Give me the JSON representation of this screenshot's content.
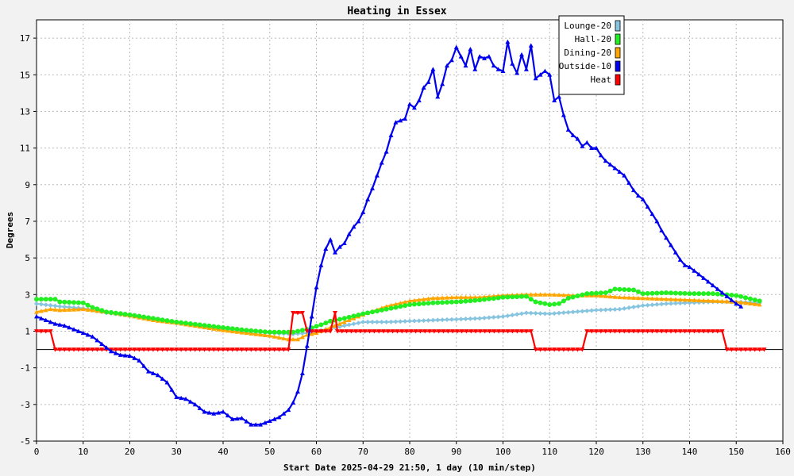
{
  "chart_data": {
    "type": "line",
    "title": "Heating in Essex",
    "xlabel": "Start Date 2025-04-29 21:50, 1 day (10 min/step)",
    "ylabel": "Degrees",
    "xlim": [
      0,
      160
    ],
    "ylim": [
      -5,
      18
    ],
    "x_ticks": [
      0,
      10,
      20,
      30,
      40,
      50,
      60,
      70,
      80,
      90,
      100,
      110,
      120,
      130,
      140,
      150,
      160
    ],
    "y_ticks": [
      -5,
      -3,
      -1,
      1,
      3,
      5,
      7,
      9,
      11,
      13,
      15,
      17
    ],
    "grid": true,
    "legend_position": "top-right",
    "background": "#f2f2f2",
    "series": [
      {
        "name": "Lounge-20",
        "color": "#87c4e0",
        "marker": "diamond",
        "points": [
          [
            0,
            2.5
          ],
          [
            5,
            2.35
          ],
          [
            10,
            2.25
          ],
          [
            15,
            2.0
          ],
          [
            20,
            1.85
          ],
          [
            25,
            1.65
          ],
          [
            30,
            1.45
          ],
          [
            35,
            1.3
          ],
          [
            40,
            1.15
          ],
          [
            45,
            1.0
          ],
          [
            50,
            0.9
          ],
          [
            55,
            0.85
          ],
          [
            58,
            0.9
          ],
          [
            61,
            1.05
          ],
          [
            64,
            1.2
          ],
          [
            67,
            1.35
          ],
          [
            70,
            1.5
          ],
          [
            75,
            1.5
          ],
          [
            80,
            1.55
          ],
          [
            85,
            1.6
          ],
          [
            90,
            1.65
          ],
          [
            95,
            1.7
          ],
          [
            100,
            1.8
          ],
          [
            105,
            2.0
          ],
          [
            110,
            1.95
          ],
          [
            115,
            2.05
          ],
          [
            120,
            2.15
          ],
          [
            125,
            2.2
          ],
          [
            130,
            2.4
          ],
          [
            135,
            2.5
          ],
          [
            140,
            2.55
          ],
          [
            145,
            2.6
          ],
          [
            150,
            2.6
          ],
          [
            155,
            2.55
          ]
        ]
      },
      {
        "name": "Hall-20",
        "color": "#22ee22",
        "marker": "circle",
        "points": [
          [
            0,
            2.75
          ],
          [
            4,
            2.75
          ],
          [
            5,
            2.6
          ],
          [
            10,
            2.55
          ],
          [
            12,
            2.3
          ],
          [
            15,
            2.05
          ],
          [
            20,
            1.9
          ],
          [
            25,
            1.7
          ],
          [
            30,
            1.5
          ],
          [
            35,
            1.35
          ],
          [
            40,
            1.2
          ],
          [
            45,
            1.05
          ],
          [
            50,
            0.95
          ],
          [
            55,
            0.95
          ],
          [
            58,
            1.1
          ],
          [
            61,
            1.35
          ],
          [
            63,
            1.55
          ],
          [
            66,
            1.7
          ],
          [
            70,
            1.95
          ],
          [
            75,
            2.2
          ],
          [
            80,
            2.45
          ],
          [
            85,
            2.55
          ],
          [
            90,
            2.6
          ],
          [
            95,
            2.7
          ],
          [
            100,
            2.85
          ],
          [
            105,
            2.9
          ],
          [
            107,
            2.6
          ],
          [
            110,
            2.45
          ],
          [
            112,
            2.5
          ],
          [
            114,
            2.8
          ],
          [
            118,
            3.05
          ],
          [
            122,
            3.1
          ],
          [
            124,
            3.3
          ],
          [
            128,
            3.25
          ],
          [
            130,
            3.05
          ],
          [
            135,
            3.1
          ],
          [
            140,
            3.05
          ],
          [
            145,
            3.05
          ],
          [
            150,
            2.95
          ],
          [
            155,
            2.65
          ]
        ]
      },
      {
        "name": "Dining-20",
        "color": "#ffa500",
        "marker": "triangle",
        "points": [
          [
            0,
            2.05
          ],
          [
            3,
            2.2
          ],
          [
            5,
            2.15
          ],
          [
            10,
            2.2
          ],
          [
            15,
            2.05
          ],
          [
            20,
            1.85
          ],
          [
            25,
            1.6
          ],
          [
            30,
            1.45
          ],
          [
            35,
            1.25
          ],
          [
            40,
            1.05
          ],
          [
            45,
            0.9
          ],
          [
            50,
            0.75
          ],
          [
            54,
            0.55
          ],
          [
            56,
            0.55
          ],
          [
            58,
            0.8
          ],
          [
            60,
            0.9
          ],
          [
            63,
            1.2
          ],
          [
            66,
            1.5
          ],
          [
            70,
            1.9
          ],
          [
            75,
            2.35
          ],
          [
            80,
            2.65
          ],
          [
            85,
            2.8
          ],
          [
            90,
            2.85
          ],
          [
            95,
            2.85
          ],
          [
            100,
            2.95
          ],
          [
            105,
            3.0
          ],
          [
            110,
            3.0
          ],
          [
            115,
            2.95
          ],
          [
            120,
            2.95
          ],
          [
            125,
            2.85
          ],
          [
            130,
            2.8
          ],
          [
            135,
            2.75
          ],
          [
            140,
            2.7
          ],
          [
            145,
            2.65
          ],
          [
            150,
            2.6
          ],
          [
            155,
            2.45
          ]
        ]
      },
      {
        "name": "Outside-10",
        "color": "#0000ee",
        "marker": "triangle",
        "points": [
          [
            0,
            1.8
          ],
          [
            2,
            1.6
          ],
          [
            4,
            1.4
          ],
          [
            6,
            1.3
          ],
          [
            8,
            1.1
          ],
          [
            10,
            0.9
          ],
          [
            12,
            0.7
          ],
          [
            14,
            0.3
          ],
          [
            16,
            -0.1
          ],
          [
            18,
            -0.3
          ],
          [
            20,
            -0.35
          ],
          [
            22,
            -0.6
          ],
          [
            24,
            -1.2
          ],
          [
            26,
            -1.4
          ],
          [
            28,
            -1.8
          ],
          [
            30,
            -2.6
          ],
          [
            32,
            -2.7
          ],
          [
            34,
            -3.0
          ],
          [
            36,
            -3.4
          ],
          [
            38,
            -3.5
          ],
          [
            40,
            -3.4
          ],
          [
            42,
            -3.8
          ],
          [
            44,
            -3.75
          ],
          [
            46,
            -4.1
          ],
          [
            48,
            -4.1
          ],
          [
            50,
            -3.9
          ],
          [
            52,
            -3.7
          ],
          [
            54,
            -3.3
          ],
          [
            55,
            -2.9
          ],
          [
            56,
            -2.3
          ],
          [
            57,
            -1.3
          ],
          [
            58,
            0.2
          ],
          [
            59,
            1.8
          ],
          [
            60,
            3.4
          ],
          [
            61,
            4.6
          ],
          [
            62,
            5.5
          ],
          [
            63,
            6.0
          ],
          [
            64,
            5.3
          ],
          [
            65,
            5.6
          ],
          [
            66,
            5.8
          ],
          [
            67,
            6.3
          ],
          [
            68,
            6.7
          ],
          [
            69,
            7.0
          ],
          [
            70,
            7.5
          ],
          [
            71,
            8.2
          ],
          [
            72,
            8.8
          ],
          [
            73,
            9.5
          ],
          [
            74,
            10.2
          ],
          [
            75,
            10.8
          ],
          [
            76,
            11.7
          ],
          [
            77,
            12.4
          ],
          [
            78,
            12.5
          ],
          [
            79,
            12.6
          ],
          [
            80,
            13.4
          ],
          [
            81,
            13.2
          ],
          [
            82,
            13.6
          ],
          [
            83,
            14.3
          ],
          [
            84,
            14.6
          ],
          [
            85,
            15.3
          ],
          [
            86,
            13.8
          ],
          [
            87,
            14.5
          ],
          [
            88,
            15.5
          ],
          [
            89,
            15.8
          ],
          [
            90,
            16.5
          ],
          [
            91,
            16.0
          ],
          [
            92,
            15.5
          ],
          [
            93,
            16.4
          ],
          [
            94,
            15.3
          ],
          [
            95,
            16.0
          ],
          [
            96,
            15.9
          ],
          [
            97,
            16.0
          ],
          [
            98,
            15.5
          ],
          [
            99,
            15.3
          ],
          [
            100,
            15.2
          ],
          [
            101,
            16.8
          ],
          [
            102,
            15.6
          ],
          [
            103,
            15.1
          ],
          [
            104,
            16.1
          ],
          [
            105,
            15.3
          ],
          [
            106,
            16.6
          ],
          [
            107,
            14.8
          ],
          [
            108,
            15.0
          ],
          [
            109,
            15.2
          ],
          [
            110,
            15.0
          ],
          [
            111,
            13.6
          ],
          [
            112,
            13.8
          ],
          [
            113,
            12.8
          ],
          [
            114,
            12.0
          ],
          [
            115,
            11.7
          ],
          [
            116,
            11.5
          ],
          [
            117,
            11.1
          ],
          [
            118,
            11.3
          ],
          [
            119,
            11.0
          ],
          [
            120,
            11.0
          ],
          [
            121,
            10.6
          ],
          [
            122,
            10.3
          ],
          [
            123,
            10.1
          ],
          [
            124,
            9.9
          ],
          [
            125,
            9.7
          ],
          [
            126,
            9.5
          ],
          [
            127,
            9.1
          ],
          [
            128,
            8.7
          ],
          [
            129,
            8.4
          ],
          [
            130,
            8.2
          ],
          [
            131,
            7.8
          ],
          [
            132,
            7.4
          ],
          [
            133,
            7.0
          ],
          [
            134,
            6.5
          ],
          [
            135,
            6.1
          ],
          [
            136,
            5.7
          ],
          [
            137,
            5.3
          ],
          [
            138,
            4.9
          ],
          [
            139,
            4.6
          ],
          [
            140,
            4.5
          ],
          [
            141,
            4.3
          ],
          [
            142,
            4.1
          ],
          [
            143,
            3.9
          ],
          [
            144,
            3.7
          ],
          [
            145,
            3.5
          ],
          [
            146,
            3.3
          ],
          [
            147,
            3.1
          ],
          [
            148,
            2.9
          ],
          [
            149,
            2.7
          ],
          [
            150,
            2.5
          ],
          [
            151,
            2.35
          ]
        ]
      },
      {
        "name": "Heat",
        "color": "#ff0000",
        "marker": "triangle-down",
        "points": [
          [
            0,
            1.0
          ],
          [
            3,
            1.0
          ],
          [
            4,
            0.0
          ],
          [
            54,
            0.0
          ],
          [
            55,
            2.0
          ],
          [
            57,
            2.0
          ],
          [
            58,
            1.0
          ],
          [
            63,
            1.0
          ],
          [
            64,
            2.0
          ],
          [
            64.5,
            1.0
          ],
          [
            106,
            1.0
          ],
          [
            107,
            0.0
          ],
          [
            117,
            0.0
          ],
          [
            118,
            1.0
          ],
          [
            147,
            1.0
          ],
          [
            148,
            0.0
          ],
          [
            156,
            0.0
          ]
        ]
      }
    ]
  }
}
